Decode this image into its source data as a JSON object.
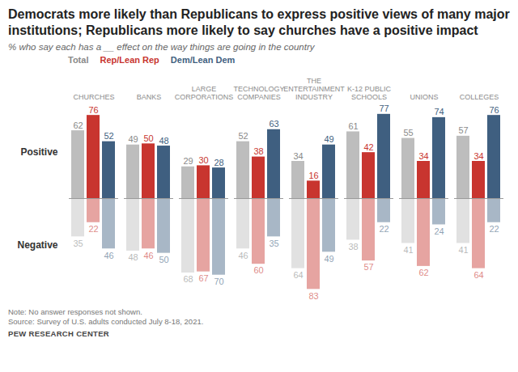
{
  "chart_data": {
    "type": "bar",
    "title": "Democrats more likely than Republicans to express positive views of many major institutions; Republicans more likely to say churches have a positive impact",
    "subtitle": "% who say each has a __ effect on the way things are going in the country",
    "categories": [
      "CHURCHES",
      "BANKS",
      "LARGE CORPORATIONS",
      "TECHNOLOGY COMPANIES",
      "THE ENTERTAINMENT INDUSTRY",
      "K-12 PUBLIC SCHOOLS",
      "UNIONS",
      "COLLEGES"
    ],
    "row_labels": [
      "Positive",
      "Negative"
    ],
    "series": [
      {
        "name": "Total",
        "color": "#bdbdbd",
        "values": [
          62,
          49,
          29,
          52,
          34,
          61,
          55,
          57
        ],
        "negative_values": [
          35,
          48,
          68,
          46,
          64,
          38,
          41,
          41
        ]
      },
      {
        "name": "Rep/Lean Rep",
        "color": "#c8352f",
        "values": [
          76,
          50,
          30,
          38,
          16,
          42,
          34,
          34
        ],
        "negative_values": [
          22,
          46,
          67,
          60,
          83,
          57,
          62,
          64
        ]
      },
      {
        "name": "Dem/Lean Dem",
        "color": "#3f5f80",
        "values": [
          52,
          48,
          28,
          63,
          49,
          77,
          74,
          76
        ],
        "negative_values": [
          46,
          50,
          70,
          35,
          49,
          22,
          24,
          22
        ]
      }
    ],
    "ylim": [
      0,
      85
    ],
    "yticks": [],
    "tick_labels": "x",
    "data_labels": true,
    "legend": "top",
    "notes": [
      "Note: No answer responses not shown.",
      "Source: Survey of U.S. adults conducted July 8-18, 2021."
    ],
    "source": "PEW RESEARCH CENTER"
  }
}
